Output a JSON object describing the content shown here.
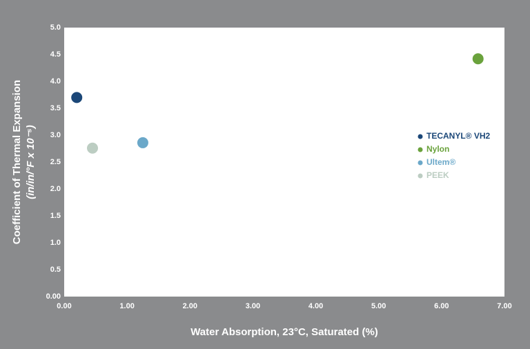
{
  "chart_data": {
    "type": "scatter",
    "y_label": [
      "Coefficient of Thermal Expansion",
      "(in/in/°F x 10⁻⁵)"
    ],
    "x_label": "Water Absorption, 23°C, Saturated (%)",
    "xlim": [
      0,
      7
    ],
    "ylim": [
      0,
      5
    ],
    "xticks": [
      {
        "value": 0,
        "label": "0.00"
      },
      {
        "value": 1,
        "label": "1.00"
      },
      {
        "value": 2,
        "label": "2.00"
      },
      {
        "value": 3,
        "label": "3.00"
      },
      {
        "value": 4,
        "label": "4.00"
      },
      {
        "value": 5,
        "label": "5.00"
      },
      {
        "value": 6,
        "label": "6.00"
      },
      {
        "value": 7,
        "label": "7.00"
      }
    ],
    "yticks": [
      {
        "value": 0,
        "label": "0.00"
      },
      0.5,
      {
        "value": 1,
        "label": "1.0"
      },
      1.5,
      {
        "value": 2,
        "label": "2.0"
      },
      2.5,
      {
        "value": 3,
        "label": "3.0"
      },
      3.5,
      {
        "value": 4,
        "label": "4.0"
      },
      4.5,
      {
        "value": 5,
        "label": "5.0"
      }
    ],
    "series": [
      {
        "name": "TECANYL® VH2",
        "color": "#1b4778",
        "x": [
          0.2
        ],
        "values": [
          3.7
        ]
      },
      {
        "name": "Nylon",
        "color": "#6aa23c",
        "x": [
          6.58
        ],
        "values": [
          4.42
        ]
      },
      {
        "name": "Ultem®",
        "color": "#6ba8c9",
        "x": [
          1.25
        ],
        "values": [
          2.86
        ]
      },
      {
        "name": "PEEK",
        "color": "#bccdc2",
        "x": [
          0.45
        ],
        "values": [
          2.76
        ]
      }
    ]
  }
}
